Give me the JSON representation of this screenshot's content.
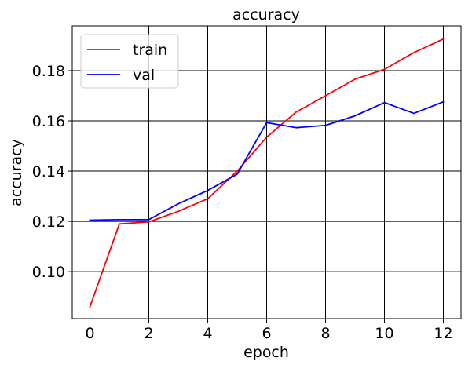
{
  "chart_data": {
    "type": "line",
    "title": "accuracy",
    "xlabel": "epoch",
    "ylabel": "accuracy",
    "xlim": [
      -0.6,
      12.6
    ],
    "ylim": [
      0.0813,
      0.1978
    ],
    "xticks": [
      0,
      2,
      4,
      6,
      8,
      10,
      12
    ],
    "yticks": [
      0.1,
      0.12,
      0.14,
      0.16,
      0.18
    ],
    "xtick_labels": [
      "0",
      "2",
      "4",
      "6",
      "8",
      "10",
      "12"
    ],
    "ytick_labels": [
      "0.10",
      "0.12",
      "0.14",
      "0.16",
      "0.18"
    ],
    "grid": true,
    "legend_position": "top-left",
    "x": [
      0,
      1,
      2,
      3,
      4,
      5,
      6,
      7,
      8,
      9,
      10,
      11,
      12
    ],
    "series": [
      {
        "name": "train",
        "color": "#ff0000",
        "values": [
          0.086,
          0.119,
          0.1198,
          0.124,
          0.129,
          0.14,
          0.1535,
          0.1635,
          0.17,
          0.1766,
          0.1805,
          0.1872,
          0.1926
        ]
      },
      {
        "name": "val",
        "color": "#0000ff",
        "values": [
          0.1205,
          0.1207,
          0.1207,
          0.127,
          0.1323,
          0.1388,
          0.1593,
          0.1573,
          0.1582,
          0.162,
          0.1673,
          0.163,
          0.1676
        ]
      }
    ]
  }
}
